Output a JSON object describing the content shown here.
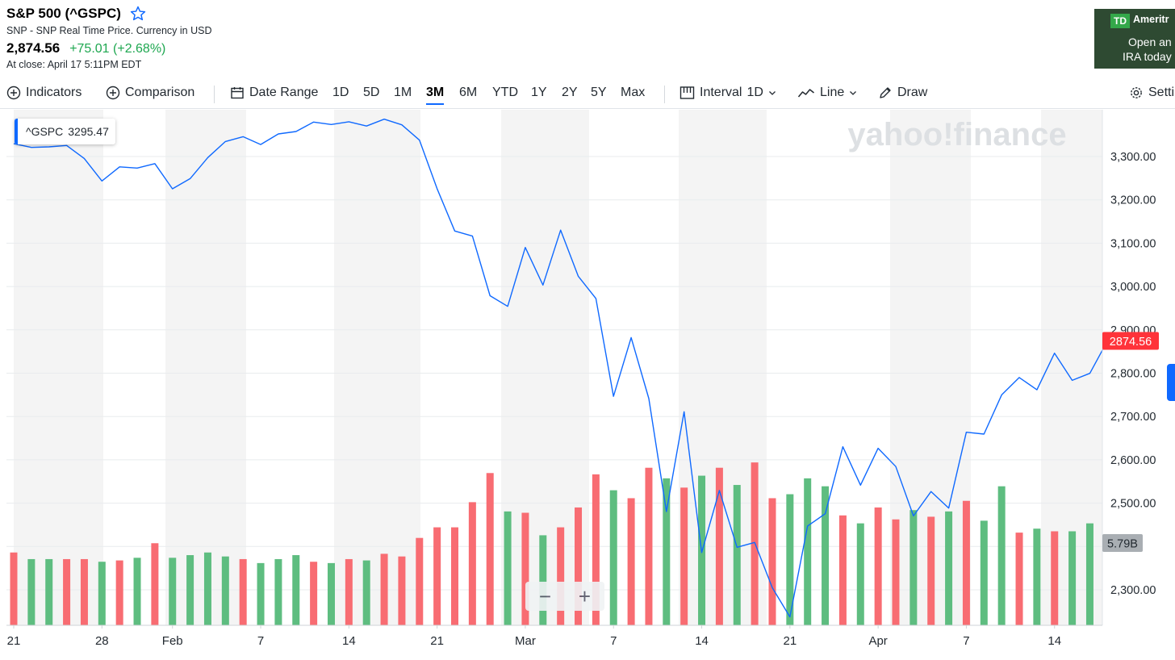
{
  "header": {
    "title": "S&P 500 (^GSPC)",
    "subtitle": "SNP - SNP Real Time Price. Currency in USD",
    "price": "2,874.56",
    "change": "+75.01 (+2.68%)",
    "closing": "At close: April 17 5:11PM EDT"
  },
  "ad": {
    "logo": "TD",
    "brand": "Ameritr",
    "line1": "Open an",
    "line2": "IRA today"
  },
  "toolbar": {
    "indicators": "Indicators",
    "comparison": "Comparison",
    "date_range": "Date Range",
    "ranges": [
      "1D",
      "5D",
      "1M",
      "3M",
      "6M",
      "YTD",
      "1Y",
      "2Y",
      "5Y",
      "Max"
    ],
    "active_range": "3M",
    "interval_label": "Interval",
    "interval_value": "1D",
    "chart_type": "Line",
    "draw": "Draw",
    "settings": "Settings"
  },
  "tooltip": {
    "symbol": "^GSPC",
    "value": "3295.47"
  },
  "watermark": "yahoo!finance",
  "zoom": {
    "minus": "−",
    "plus": "+"
  },
  "colors": {
    "line": "#0f69ff",
    "up": "#1ea750",
    "down": "#ff333a",
    "up_bar": "#5ebd80",
    "down_bar": "#f86c72",
    "accent": "#0f69ff"
  },
  "chart_data": {
    "type": "line",
    "ylim": [
      2220,
      3390
    ],
    "yticks": [
      2300,
      2400,
      2500,
      2600,
      2700,
      2800,
      2900,
      3000,
      3100,
      3200,
      3300
    ],
    "ytick_labels": [
      "2,300.00",
      "",
      "2,500.00",
      "2,600.00",
      "2,700.00",
      "2,800.00",
      "2,900.00",
      "3,000.00",
      "3,100.00",
      "3,200.00",
      "3,300.00"
    ],
    "xtick_labels": [
      "21",
      "28",
      "Feb",
      "7",
      "14",
      "21",
      "Mar",
      "7",
      "14",
      "21",
      "Apr",
      "7",
      "14"
    ],
    "xtick_index": [
      0,
      5,
      9,
      14,
      19,
      24,
      29,
      34,
      39,
      44,
      49,
      54,
      59
    ],
    "last_label": "2874.56",
    "volume_label": "5.79B",
    "series": [
      {
        "values": [
          3329.6,
          3321.0,
          3322.4,
          3325.5,
          3295.5,
          3243.6,
          3276.2,
          3273.4,
          3283.7,
          3225.5,
          3248.9,
          3297.6,
          3334.7,
          3345.8,
          3327.7,
          3352.1,
          3357.8,
          3379.5,
          3373.9,
          3380.2,
          3370.3,
          3386.2,
          3373.2,
          3337.8,
          3225.9,
          3128.2,
          3116.4,
          2978.8,
          2954.2,
          3090.2,
          3003.4,
          3130.1,
          3023.9,
          2972.4,
          2746.6,
          2882.2,
          2741.4,
          2480.6,
          2711.0,
          2386.1,
          2529.2,
          2398.1,
          2409.4,
          2304.9,
          2237.4,
          2447.3,
          2475.6,
          2630.1,
          2541.5,
          2626.7,
          2584.6,
          2470.5,
          2526.9,
          2488.7,
          2663.7,
          2659.4,
          2750.0,
          2790.0,
          2761.6,
          2846.1,
          2783.4,
          2799.6,
          2874.6
        ]
      }
    ],
    "volume": [
      {
        "v": 5.5,
        "up": false
      },
      {
        "v": 5.0,
        "up": true
      },
      {
        "v": 5.0,
        "up": true
      },
      {
        "v": 5.0,
        "up": false
      },
      {
        "v": 5.0,
        "up": false
      },
      {
        "v": 4.8,
        "up": true
      },
      {
        "v": 4.9,
        "up": false
      },
      {
        "v": 5.1,
        "up": true
      },
      {
        "v": 6.2,
        "up": false
      },
      {
        "v": 5.1,
        "up": true
      },
      {
        "v": 5.3,
        "up": true
      },
      {
        "v": 5.5,
        "up": true
      },
      {
        "v": 5.2,
        "up": true
      },
      {
        "v": 5.0,
        "up": false
      },
      {
        "v": 4.7,
        "up": true
      },
      {
        "v": 5.0,
        "up": true
      },
      {
        "v": 5.3,
        "up": true
      },
      {
        "v": 4.8,
        "up": false
      },
      {
        "v": 4.7,
        "up": true
      },
      {
        "v": 5.0,
        "up": false
      },
      {
        "v": 4.9,
        "up": true
      },
      {
        "v": 5.4,
        "up": false
      },
      {
        "v": 5.2,
        "up": false
      },
      {
        "v": 6.6,
        "up": false
      },
      {
        "v": 7.4,
        "up": false
      },
      {
        "v": 7.4,
        "up": false
      },
      {
        "v": 9.3,
        "up": false
      },
      {
        "v": 11.5,
        "up": false
      },
      {
        "v": 8.6,
        "up": true
      },
      {
        "v": 8.5,
        "up": false
      },
      {
        "v": 6.8,
        "up": true
      },
      {
        "v": 7.4,
        "up": false
      },
      {
        "v": 8.9,
        "up": false
      },
      {
        "v": 11.4,
        "up": false
      },
      {
        "v": 10.2,
        "up": true
      },
      {
        "v": 9.6,
        "up": false
      },
      {
        "v": 11.9,
        "up": false
      },
      {
        "v": 11.1,
        "up": true
      },
      {
        "v": 10.4,
        "up": false
      },
      {
        "v": 11.3,
        "up": true
      },
      {
        "v": 11.9,
        "up": false
      },
      {
        "v": 10.6,
        "up": true
      },
      {
        "v": 12.3,
        "up": false
      },
      {
        "v": 9.6,
        "up": false
      },
      {
        "v": 9.9,
        "up": true
      },
      {
        "v": 11.1,
        "up": true
      },
      {
        "v": 10.5,
        "up": true
      },
      {
        "v": 8.3,
        "up": false
      },
      {
        "v": 7.7,
        "up": true
      },
      {
        "v": 8.9,
        "up": false
      },
      {
        "v": 8.0,
        "up": false
      },
      {
        "v": 8.7,
        "up": true
      },
      {
        "v": 8.2,
        "up": false
      },
      {
        "v": 8.6,
        "up": true
      },
      {
        "v": 9.4,
        "up": false
      },
      {
        "v": 7.9,
        "up": true
      },
      {
        "v": 10.5,
        "up": true
      },
      {
        "v": 7.0,
        "up": false
      },
      {
        "v": 7.3,
        "up": true
      },
      {
        "v": 7.1,
        "up": false
      },
      {
        "v": 7.1,
        "up": true
      },
      {
        "v": 7.7,
        "up": true
      }
    ],
    "volume_max": 19.5
  }
}
